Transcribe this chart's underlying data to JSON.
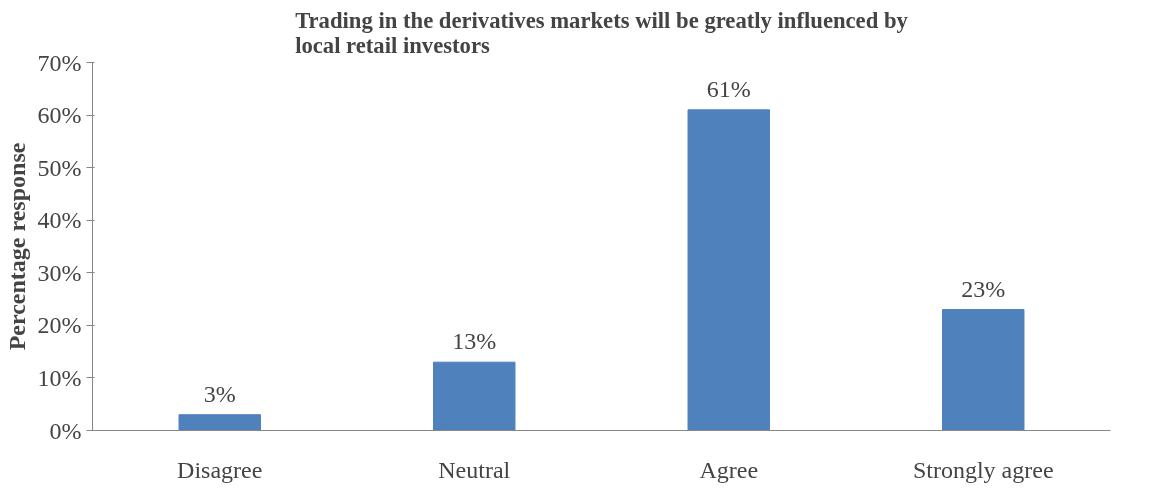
{
  "chart_data": {
    "type": "bar",
    "title": "Trading in the derivatives markets will be greatly influenced by\nlocal retail investors",
    "ylabel": "Percentage response",
    "categories": [
      "Disagree",
      "Neutral",
      "Agree",
      "Strongly agree"
    ],
    "values": [
      3,
      13,
      61,
      23
    ],
    "color": "#4f81bd",
    "value_labels": [
      "3%",
      "13%",
      "61%",
      "23%"
    ],
    "ylim": [
      0,
      70
    ],
    "yticks": [
      {
        "value": 0,
        "label": "0%"
      },
      {
        "value": 10,
        "label": "10%"
      },
      {
        "value": 20,
        "label": "20%"
      },
      {
        "value": 30,
        "label": "30%"
      },
      {
        "value": 40,
        "label": "40%"
      },
      {
        "value": 50,
        "label": "50%"
      },
      {
        "value": 60,
        "label": "60%"
      },
      {
        "value": 70,
        "label": "70%"
      }
    ],
    "grid": false
  }
}
